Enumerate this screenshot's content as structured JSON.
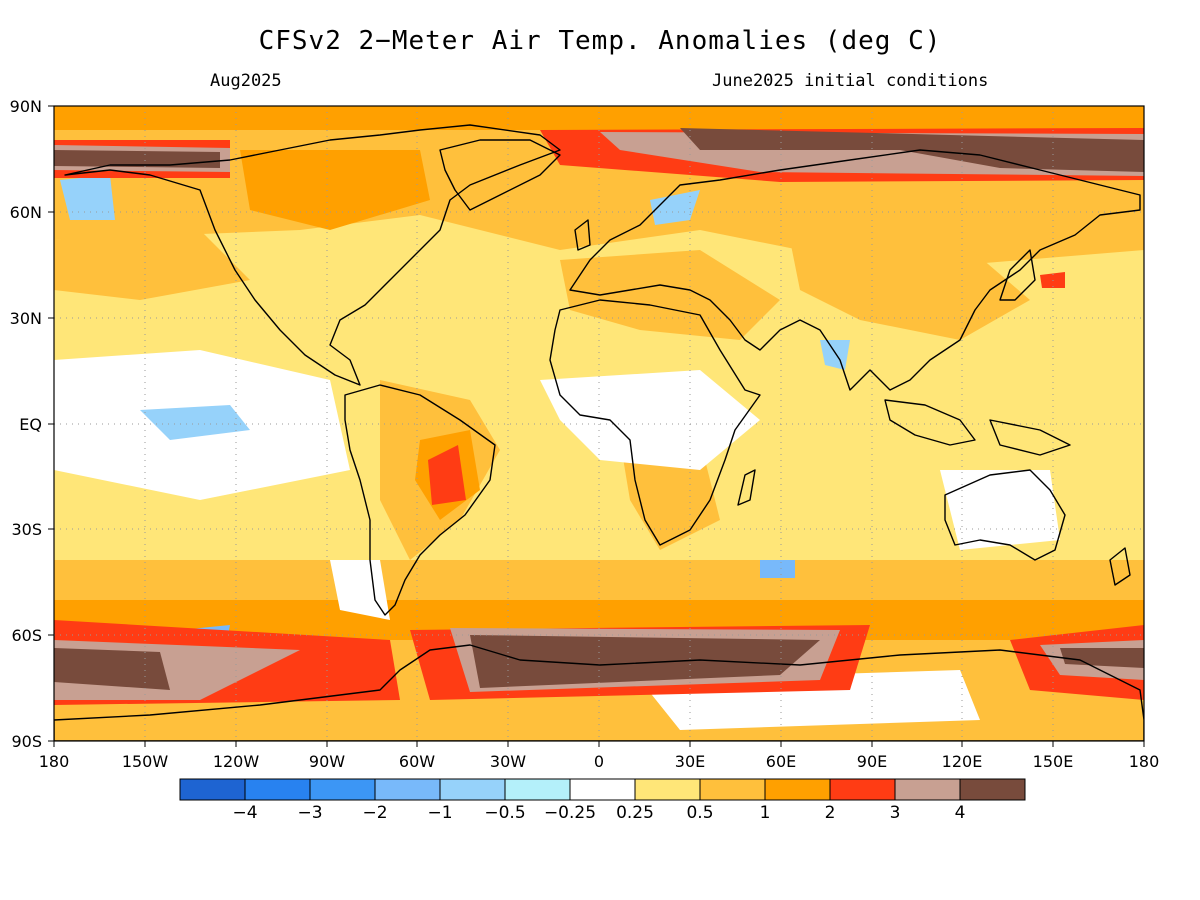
{
  "header": {
    "title": "CFSv2 2−Meter Air Temp. Anomalies (deg C)",
    "valid_month": "Aug2025",
    "initial_conditions": "June2025 initial conditions"
  },
  "map": {
    "projection": "equirectangular",
    "lon_range": [
      -180,
      180
    ],
    "lat_range": [
      -90,
      90
    ],
    "y_ticks": [
      "90N",
      "60N",
      "30N",
      "EQ",
      "30S",
      "60S",
      "90S"
    ],
    "x_ticks": [
      "180",
      "150W",
      "120W",
      "90W",
      "60W",
      "30W",
      "0",
      "30E",
      "60E",
      "90E",
      "120E",
      "150E",
      "180"
    ],
    "gridlines": "dotted"
  },
  "colorbar": {
    "colors": [
      "#1e64d2",
      "#2882f0",
      "#3c96f5",
      "#78b9fa",
      "#96d2fa",
      "#b4f0fa",
      "#ffffff",
      "#ffe678",
      "#ffc03c",
      "#ffa000",
      "#ff3c14",
      "#c8a092",
      "#784b3c"
    ],
    "labels": [
      "−4",
      "−3",
      "−2",
      "−1",
      "−0.5",
      "−0.25",
      "0.25",
      "0.5",
      "1",
      "2",
      "3",
      "4"
    ]
  }
}
